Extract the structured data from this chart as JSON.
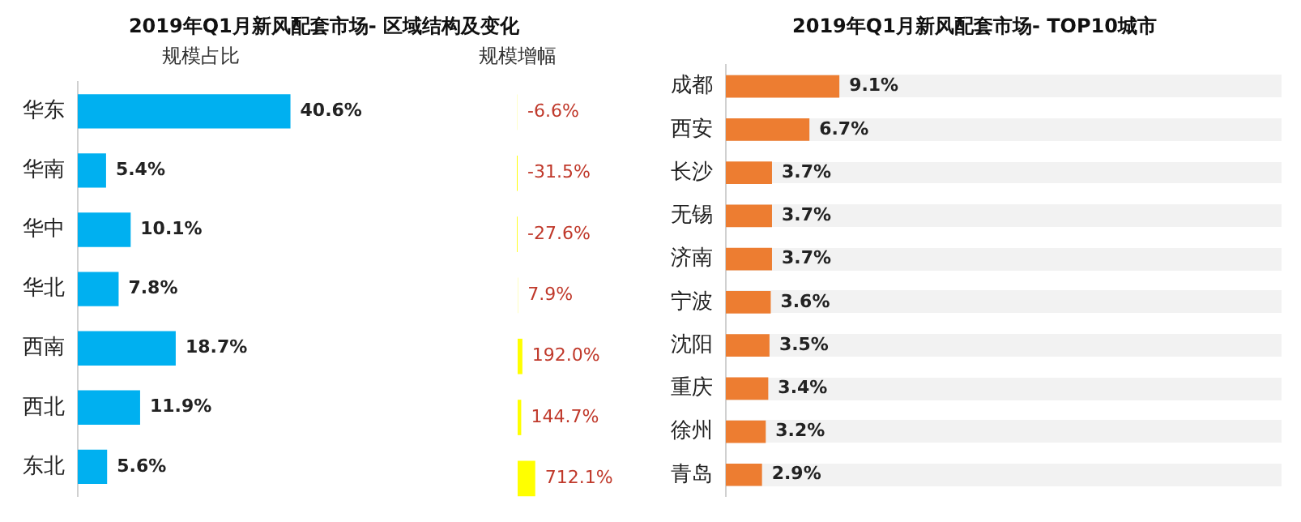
{
  "chart_data": [
    {
      "type": "bar",
      "orientation": "horizontal",
      "title": "2019年Q1月新风配套市场- 区域结构及变化",
      "subtitle": "规模占比",
      "categories": [
        "华东",
        "华南",
        "华中",
        "华北",
        "西南",
        "西北",
        "东北"
      ],
      "values": [
        40.6,
        5.4,
        10.1,
        7.8,
        18.7,
        11.9,
        5.6
      ],
      "color": "#00b0f0",
      "value_labels": [
        "40.6%",
        "5.4%",
        "10.1%",
        "7.8%",
        "18.7%",
        "11.9%",
        "5.6%"
      ],
      "tick_labels": "y"
    },
    {
      "type": "bar",
      "orientation": "horizontal",
      "subtitle": "规模增幅",
      "categories": [
        null,
        null,
        null,
        null,
        null,
        null,
        null
      ],
      "values": [
        -6.6,
        -31.5,
        -27.6,
        7.9,
        192.0,
        144.7,
        712.1
      ],
      "color": "#ffff00",
      "value_labels": [
        "-6.6%",
        "-31.5%",
        "-27.6%",
        "7.9%",
        "192.0%",
        "144.7%",
        "712.1%"
      ],
      "tick_labels": false
    },
    {
      "type": "bar",
      "orientation": "horizontal",
      "title": "2019年Q1月新风配套市场- TOP10城市",
      "categories": [
        "成都",
        "西安",
        "长沙",
        "无锡",
        "济南",
        "宁波",
        "沈阳",
        "重庆",
        "徐州",
        "青岛"
      ],
      "values": [
        9.1,
        6.7,
        3.7,
        3.7,
        3.7,
        3.6,
        3.5,
        3.4,
        3.2,
        2.9
      ],
      "color": "#ed7d31",
      "value_labels": [
        "9.1%",
        "6.7%",
        "3.7%",
        "3.7%",
        "3.7%",
        "3.6%",
        "3.5%",
        "3.4%",
        "3.2%",
        "2.9%"
      ],
      "tick_labels": "y"
    }
  ]
}
